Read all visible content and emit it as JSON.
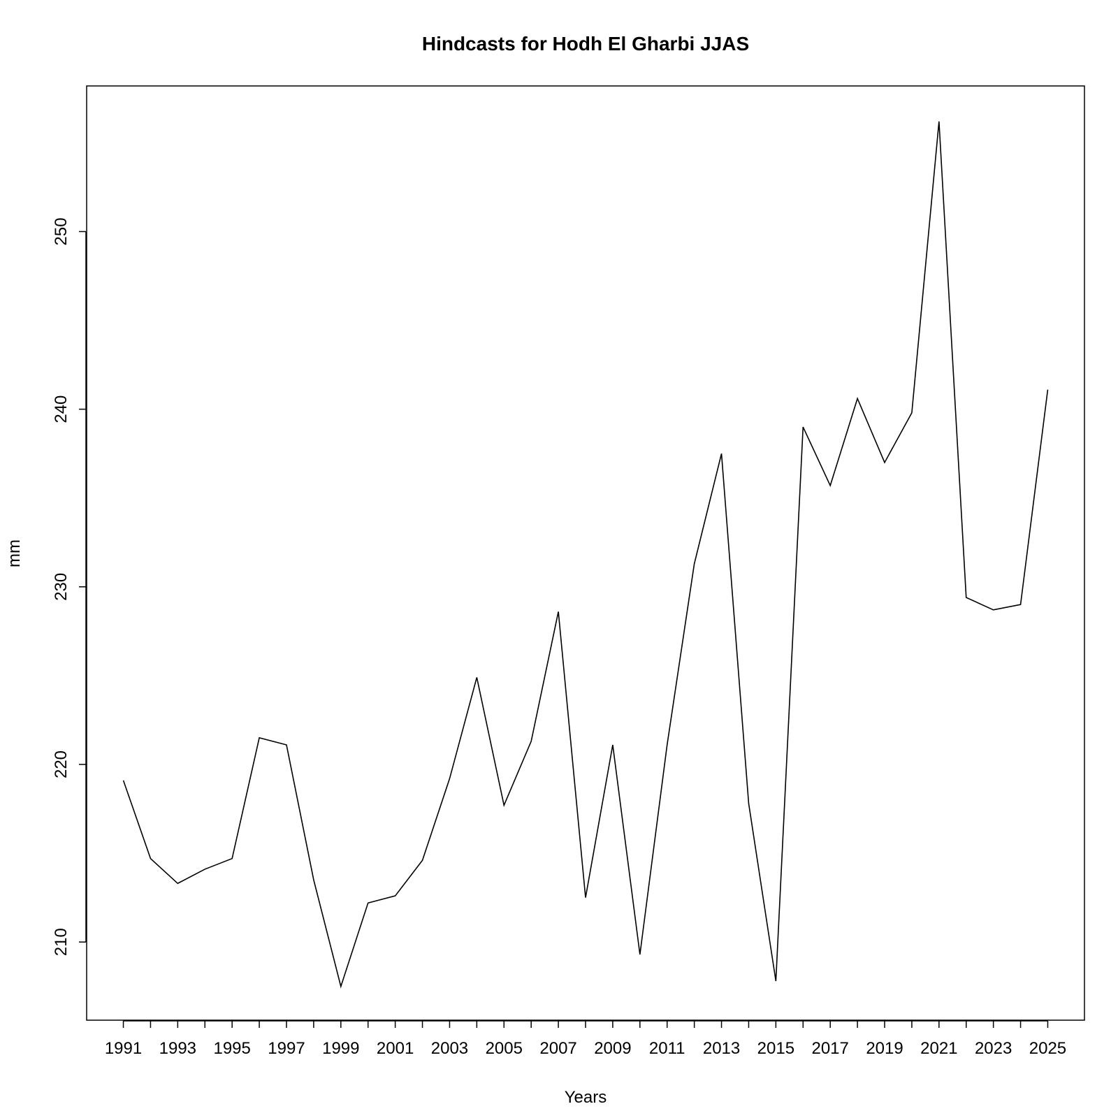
{
  "chart_data": {
    "type": "line",
    "title": "Hindcasts for Hodh El Gharbi JJAS",
    "xlabel": "Years",
    "ylabel": "mm",
    "xlim": [
      1989.65,
      2026.35
    ],
    "ylim": [
      205.6,
      258.2
    ],
    "x_ticks": [
      1991,
      1992,
      1993,
      1994,
      1995,
      1996,
      1997,
      1998,
      1999,
      2000,
      2001,
      2002,
      2003,
      2004,
      2005,
      2006,
      2007,
      2008,
      2009,
      2010,
      2011,
      2012,
      2013,
      2014,
      2015,
      2016,
      2017,
      2018,
      2019,
      2020,
      2021,
      2022,
      2023,
      2024,
      2025
    ],
    "x_tick_labels": [
      "1991",
      "",
      "1993",
      "",
      "1995",
      "",
      "1997",
      "",
      "1999",
      "",
      "2001",
      "",
      "2003",
      "",
      "2005",
      "",
      "2007",
      "",
      "2009",
      "",
      "2011",
      "",
      "2013",
      "",
      "2015",
      "",
      "2017",
      "",
      "2019",
      "",
      "2021",
      "",
      "2023",
      "",
      "2025"
    ],
    "y_ticks": [
      210,
      220,
      230,
      240,
      250
    ],
    "y_tick_labels": [
      "210",
      "220",
      "230",
      "240",
      "250"
    ],
    "grid": false,
    "x": [
      1991,
      1992,
      1993,
      1994,
      1995,
      1996,
      1997,
      1998,
      1999,
      2000,
      2001,
      2002,
      2003,
      2004,
      2005,
      2006,
      2007,
      2008,
      2009,
      2010,
      2011,
      2012,
      2013,
      2014,
      2015,
      2016,
      2017,
      2018,
      2019,
      2020,
      2021,
      2022,
      2023,
      2024,
      2025
    ],
    "values": [
      219.1,
      214.7,
      213.3,
      214.1,
      214.7,
      221.5,
      221.1,
      213.5,
      207.5,
      212.2,
      212.6,
      214.6,
      219.2,
      224.9,
      217.7,
      221.3,
      228.6,
      212.5,
      221.1,
      209.3,
      221.1,
      231.3,
      237.5,
      217.8,
      207.8,
      239.0,
      235.7,
      240.6,
      237.0,
      239.8,
      256.2,
      229.4,
      228.7,
      229.0,
      241.1
    ]
  }
}
